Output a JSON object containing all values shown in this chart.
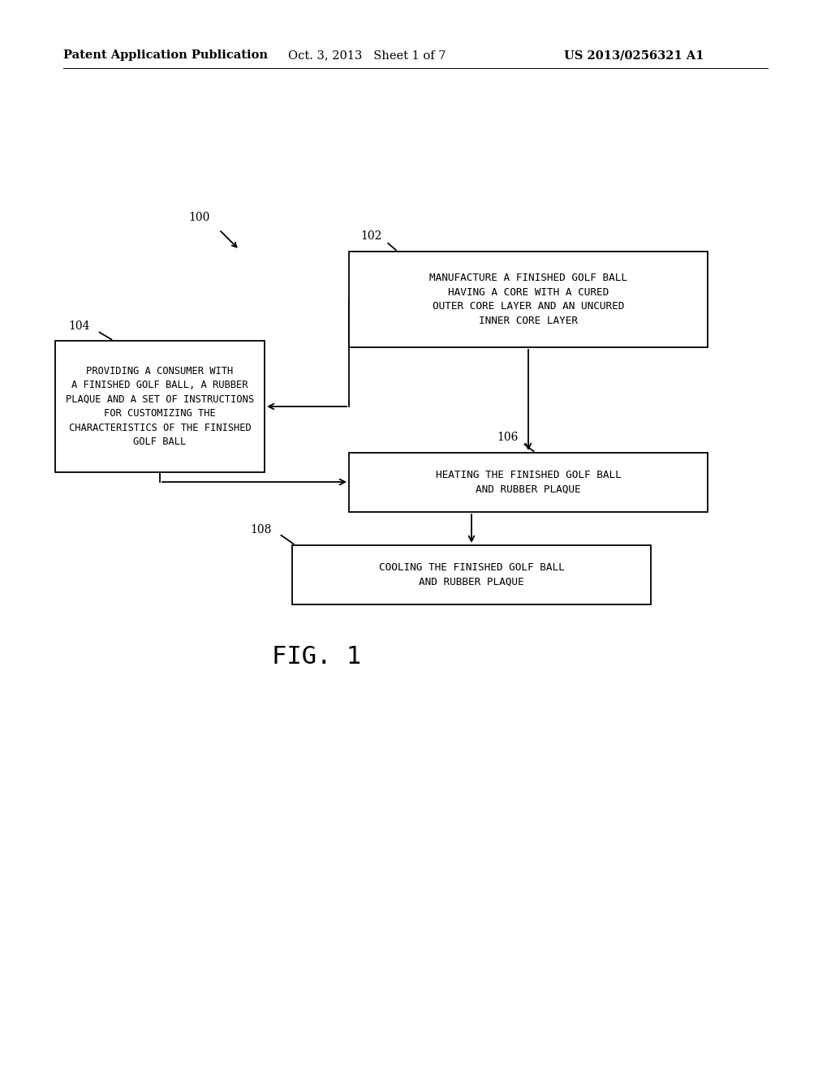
{
  "background_color": "#ffffff",
  "header_left": "Patent Application Publication",
  "header_mid": "Oct. 3, 2013   Sheet 1 of 7",
  "header_right": "US 2013/0256321 A1",
  "fig_label": "FIG. 1",
  "box102_text": "MANUFACTURE A FINISHED GOLF BALL\nHAVING A CORE WITH A CURED\nOUTER CORE LAYER AND AN UNCURED\nINNER CORE LAYER",
  "box104_text": "PROVIDING A CONSUMER WITH\nA FINISHED GOLF BALL, A RUBBER\nPLAQUE AND A SET OF INSTRUCTIONS\nFOR CUSTOMIZING THE\nCHARACTERISTICS OF THE FINISHED\nGOLF BALL",
  "box106_text": "HEATING THE FINISHED GOLF BALL\nAND RUBBER PLAQUE",
  "box108_text": "COOLING THE FINISHED GOLF BALL\nAND RUBBER PLAQUE",
  "ref100": "100",
  "ref102": "102",
  "ref104": "104",
  "ref106": "106",
  "ref108": "108"
}
